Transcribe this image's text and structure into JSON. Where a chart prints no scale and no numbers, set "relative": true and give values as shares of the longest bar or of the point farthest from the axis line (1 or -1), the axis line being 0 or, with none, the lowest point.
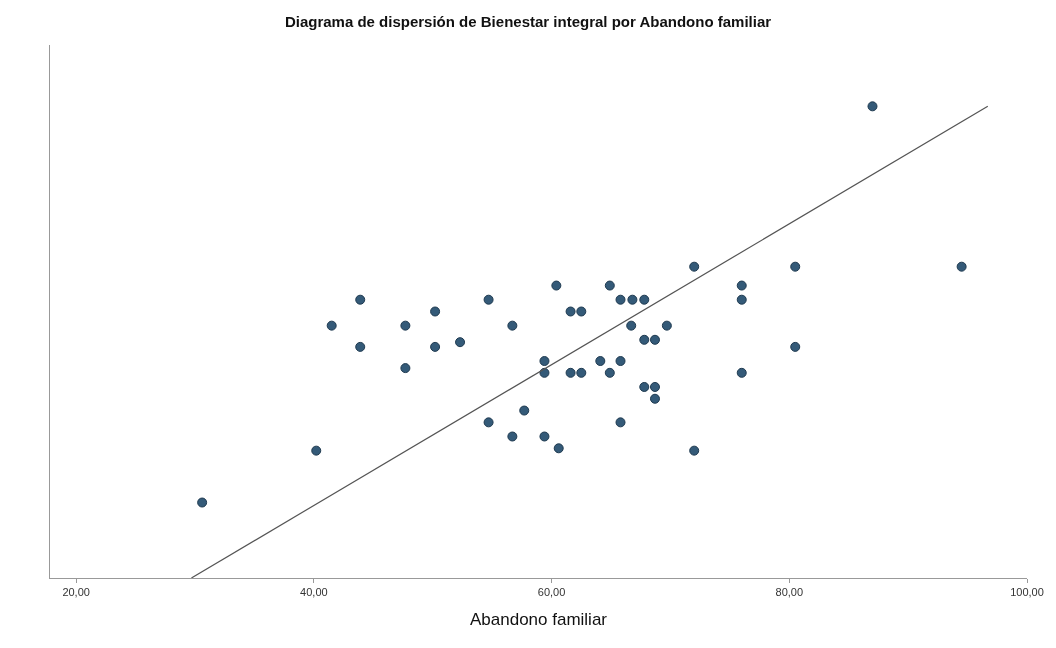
{
  "chart_data": {
    "type": "scatter",
    "title": "Diagrama de dispersión de Bienestar integral por Abandono familiar",
    "xlabel": "Abandono familiar",
    "relative": true,
    "xlim": [
      17.8,
      100
    ],
    "xticks": [
      {
        "value": 20,
        "label": "20,00"
      },
      {
        "value": 40,
        "label": "40,00"
      },
      {
        "value": 60,
        "label": "60,00"
      },
      {
        "value": 80,
        "label": "80,00"
      },
      {
        "value": 100,
        "label": "100,00"
      }
    ],
    "series": [
      {
        "color": "#345a78",
        "marker": "circle",
        "x": [
          30.6,
          40.2,
          41.5,
          43.9,
          43.9,
          47.7,
          47.7,
          50.2,
          50.2,
          52.3,
          54.7,
          54.7,
          56.7,
          56.7,
          57.7,
          59.4,
          59.4,
          59.4,
          60.4,
          60.6,
          61.6,
          61.6,
          62.5,
          62.5,
          64.1,
          64.9,
          64.9,
          65.8,
          65.8,
          65.8,
          66.8,
          66.7,
          67.8,
          67.8,
          67.8,
          68.7,
          68.7,
          68.7,
          69.7,
          72.0,
          72.0,
          76.0,
          76.0,
          76.0,
          80.5,
          80.5,
          87.0,
          94.5
        ],
        "values": [
          0.16,
          0.27,
          0.535,
          0.59,
          0.49,
          0.535,
          0.445,
          0.565,
          0.49,
          0.5,
          0.59,
          0.33,
          0.535,
          0.3,
          0.355,
          0.46,
          0.435,
          0.3,
          0.62,
          0.275,
          0.565,
          0.435,
          0.565,
          0.435,
          0.46,
          0.62,
          0.435,
          0.59,
          0.46,
          0.33,
          0.59,
          0.535,
          0.59,
          0.505,
          0.405,
          0.505,
          0.405,
          0.38,
          0.535,
          0.66,
          0.27,
          0.62,
          0.59,
          0.435,
          0.66,
          0.49,
          1.0,
          0.66
        ]
      },
      {
        "type": "line",
        "color": "#555555",
        "x": [
          29.7,
          96.7
        ],
        "values": [
          0,
          1.0
        ]
      }
    ]
  }
}
